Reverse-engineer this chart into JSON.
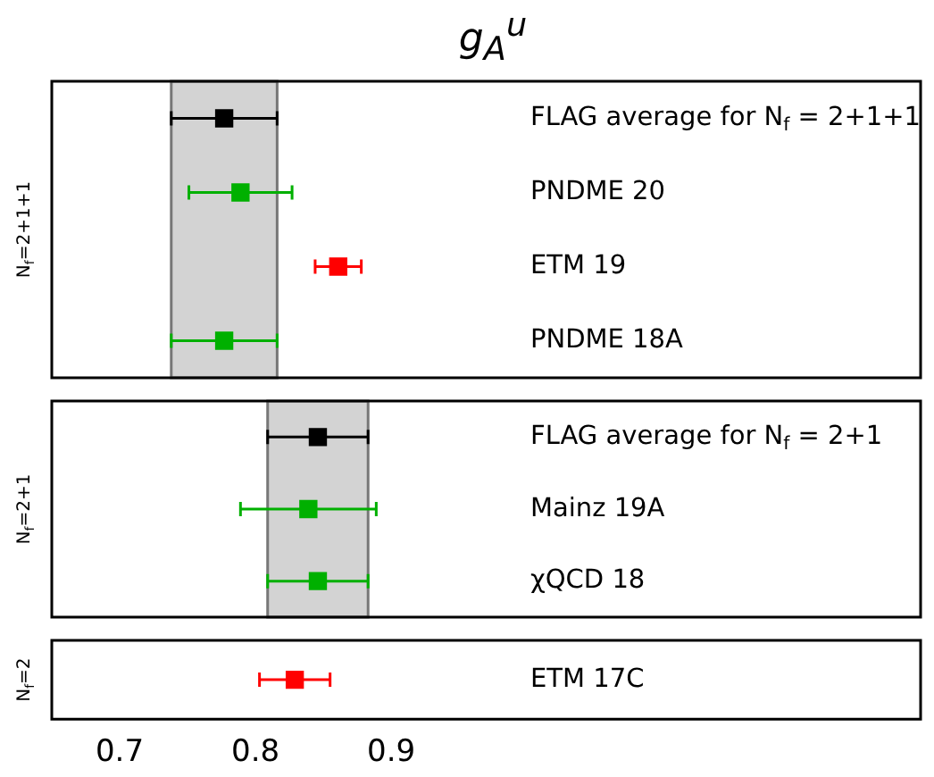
{
  "chart_data": [
    {
      "type": "scatter",
      "title": "g$_{A}$$^{u}$",
      "orientation": "horizontal",
      "marker": "square",
      "annotations": [
        "N$_{f}$=2+1+1"
      ],
      "categories": [
        "FLAG average for N$_{f}$ = 2+1+1",
        "PNDME 20",
        "ETM 19",
        "PNDME 18A"
      ],
      "series": [
        {
          "color": "#000000",
          "values": [
            0.777,
            null,
            null,
            null
          ],
          "errors": [
            0.039,
            null,
            null,
            null
          ]
        },
        {
          "color": "#00b000",
          "values": [
            null,
            0.789,
            null,
            0.777
          ],
          "errors": [
            null,
            0.038,
            null,
            0.039
          ]
        },
        {
          "color": "#ff0000",
          "values": [
            null,
            null,
            0.861,
            null
          ],
          "errors": [
            null,
            null,
            0.017,
            null
          ]
        }
      ],
      "bands": [
        {
          "axis": "x",
          "from": 0.738,
          "to": 0.816,
          "color": "#d3d3d3"
        }
      ],
      "xlim": [
        0.65,
        1.29
      ],
      "xticks": [
        0.7,
        0.8,
        0.9
      ],
      "tick_labels": "y"
    },
    {
      "type": "scatter",
      "orientation": "horizontal",
      "marker": "square",
      "annotations": [
        "N$_{f}$=2+1"
      ],
      "categories": [
        "FLAG average for N$_{f}$ = 2+1",
        "Mainz 19A",
        "χQCD 18"
      ],
      "series": [
        {
          "color": "#000000",
          "values": [
            0.846,
            null,
            null
          ],
          "errors": [
            0.037,
            null,
            null
          ]
        },
        {
          "color": "#00b000",
          "values": [
            null,
            0.839,
            0.846
          ],
          "errors": [
            null,
            0.05,
            0.037
          ]
        }
      ],
      "bands": [
        {
          "axis": "x",
          "from": 0.809,
          "to": 0.883,
          "color": "#d3d3d3"
        }
      ],
      "xlim": [
        0.65,
        1.29
      ],
      "xticks": [
        0.7,
        0.8,
        0.9
      ],
      "tick_labels": "y"
    },
    {
      "type": "scatter",
      "orientation": "horizontal",
      "marker": "square",
      "annotations": [
        "N$_{f}$=2"
      ],
      "categories": [
        "ETM 17C"
      ],
      "series": [
        {
          "color": "#ff0000",
          "values": [
            0.829
          ],
          "errors": [
            0.026
          ]
        }
      ],
      "xlim": [
        0.65,
        1.29
      ],
      "xticks": [
        0.7,
        0.8,
        0.9
      ]
    }
  ]
}
